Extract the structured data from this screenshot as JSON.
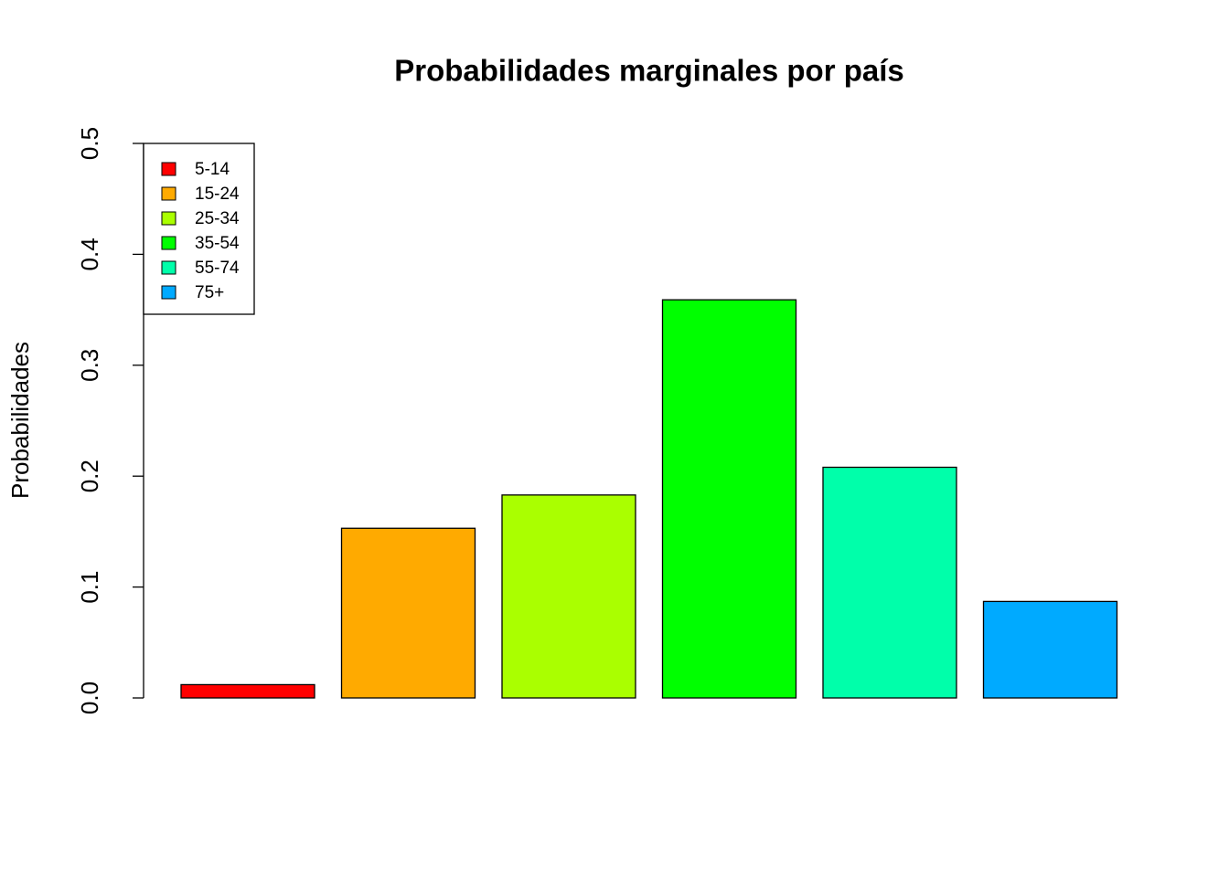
{
  "chart_data": {
    "type": "bar",
    "title": "Probabilidades marginales por país",
    "y_label": "Probabilidades",
    "categories": [
      null
    ],
    "series": [
      {
        "name": "5-14",
        "color": "#FF0000",
        "values": [
          0.012
        ]
      },
      {
        "name": "15-24",
        "color": "#FFAA00",
        "values": [
          0.153
        ]
      },
      {
        "name": "25-34",
        "color": "#AAFF00",
        "values": [
          0.183
        ]
      },
      {
        "name": "35-54",
        "color": "#00FF00",
        "values": [
          0.359
        ]
      },
      {
        "name": "55-74",
        "color": "#00FFAA",
        "values": [
          0.208
        ]
      },
      {
        "name": "75+",
        "color": "#00AAFF",
        "values": [
          0.087
        ]
      }
    ],
    "ylim": [
      0,
      0.5
    ],
    "yticks": [
      {
        "value": 0,
        "label": "0.0"
      },
      0.1,
      0.2,
      0.3,
      0.4,
      0.5
    ],
    "legend_position": "top-left"
  }
}
